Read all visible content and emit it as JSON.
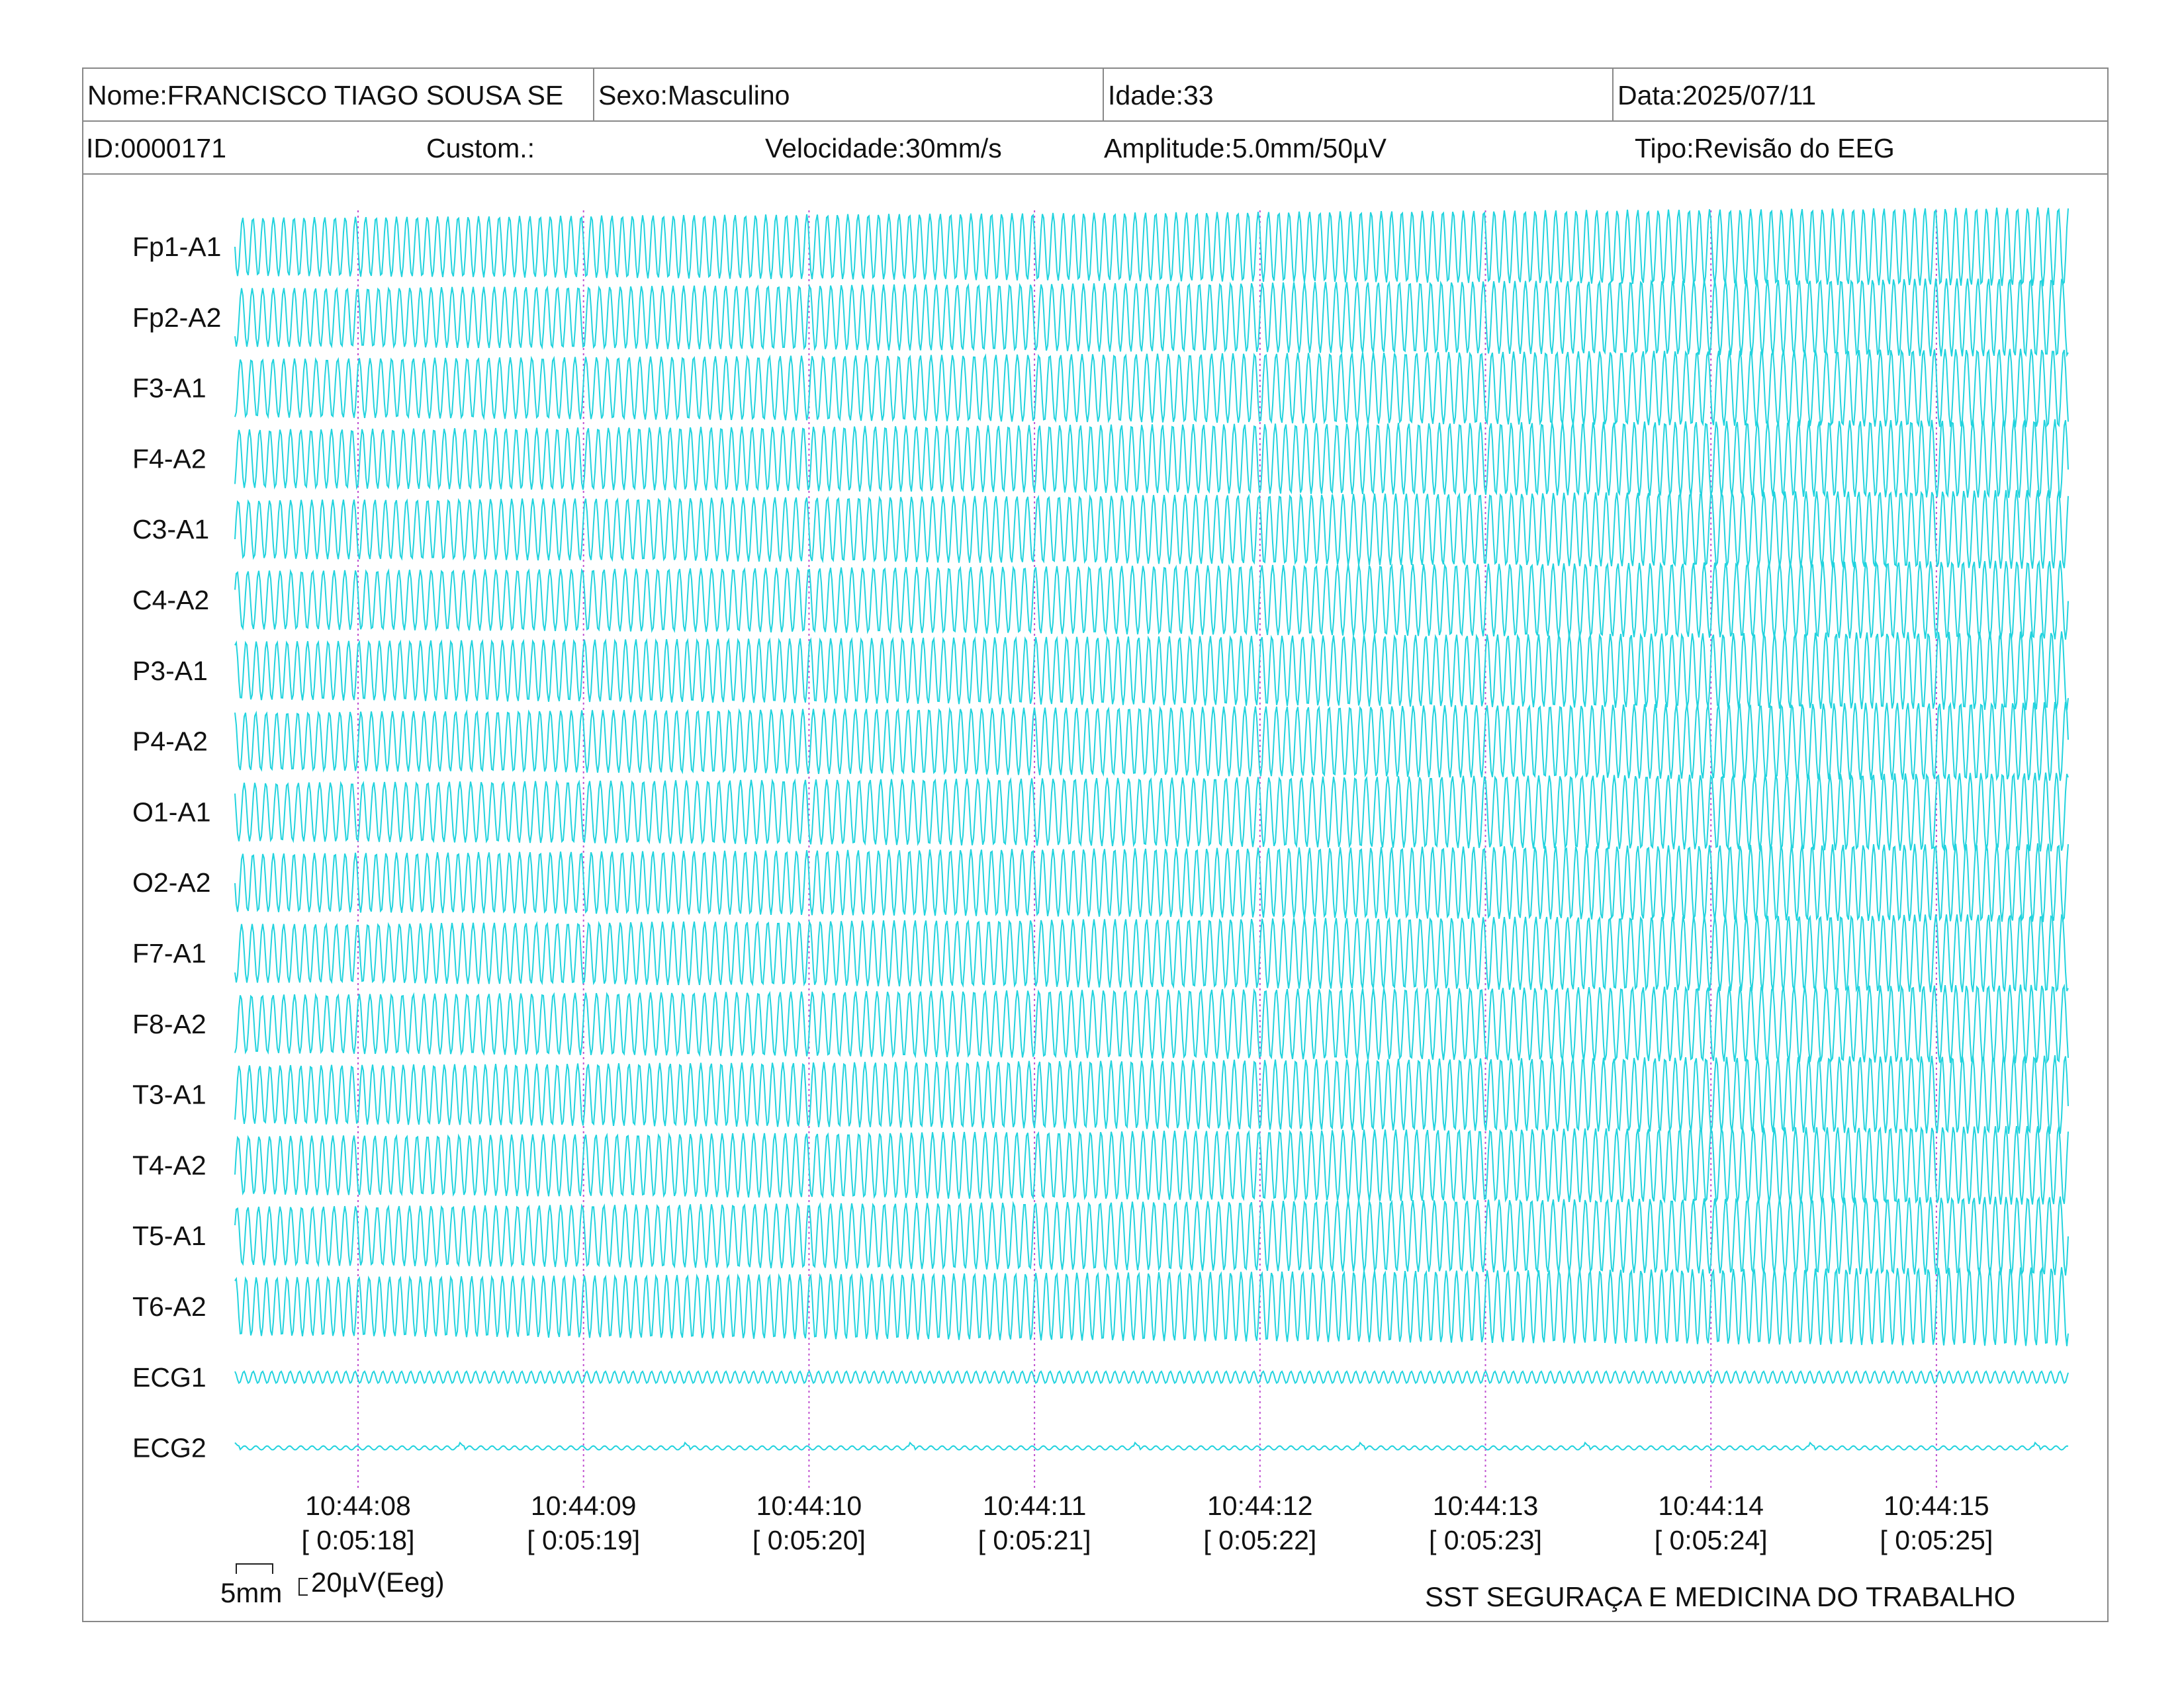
{
  "header": {
    "name": "Nome:FRANCISCO TIAGO SOUSA SE",
    "sex": "Sexo:Masculino",
    "age": "Idade:33",
    "date": "Data:2025/07/11",
    "id": "ID:0000171",
    "custom": "Custom.:",
    "speed": "Velocidade:30mm/s",
    "amplitude": "Amplitude:5.0mm/50µV",
    "type": "Tipo:Revisão do EEG"
  },
  "chart_data": {
    "type": "line",
    "channels": [
      "Fp1-A1",
      "Fp2-A2",
      "F3-A1",
      "F4-A2",
      "C3-A1",
      "C4-A2",
      "P3-A1",
      "P4-A2",
      "O1-A1",
      "O2-A2",
      "F7-A1",
      "F8-A2",
      "T3-A1",
      "T4-A2",
      "T5-A1",
      "T6-A2",
      "ECG1",
      "ECG2"
    ],
    "time_marks": [
      {
        "clock": "10:44:08",
        "elapsed": "[ 0:05:18]"
      },
      {
        "clock": "10:44:09",
        "elapsed": "[ 0:05:19]"
      },
      {
        "clock": "10:44:10",
        "elapsed": "[ 0:05:20]"
      },
      {
        "clock": "10:44:11",
        "elapsed": "[ 0:05:21]"
      },
      {
        "clock": "10:44:12",
        "elapsed": "[ 0:05:22]"
      },
      {
        "clock": "10:44:13",
        "elapsed": "[ 0:05:23]"
      },
      {
        "clock": "10:44:14",
        "elapsed": "[ 0:05:24]"
      },
      {
        "clock": "10:44:15",
        "elapsed": "[ 0:05:25]"
      }
    ],
    "trace_color": "#22d3de",
    "marker_color": "#c050d0"
  },
  "footer": {
    "scale_time": "5mm",
    "scale_amp": "20µV(Eeg)",
    "company": "SST SEGURAÇA E MEDICINA DO TRABALHO"
  }
}
